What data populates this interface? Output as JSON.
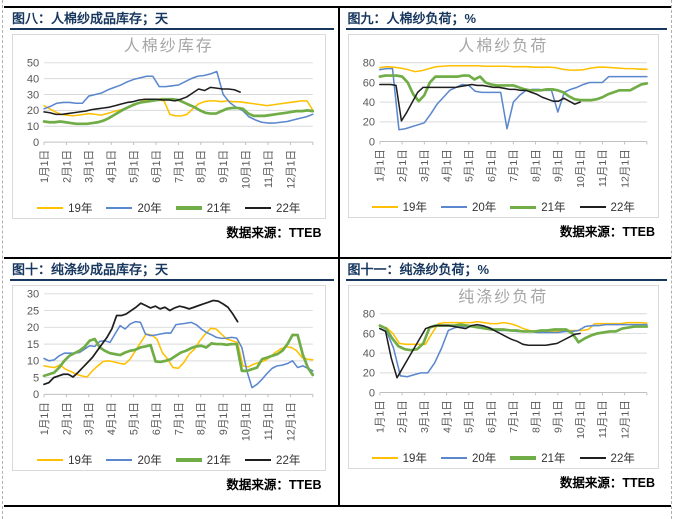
{
  "source_label": "数据来源：TTEB",
  "colors": {
    "y19": "#FFC000",
    "y20": "#5B87CE",
    "y21": "#70AD47",
    "y22": "#1F1F1F"
  },
  "x_labels": [
    "1月1日",
    "2月1日",
    "3月1日",
    "4月1日",
    "5月1日",
    "6月1日",
    "7月1日",
    "8月1日",
    "9月1日",
    "10月1日",
    "11月1日",
    "12月1日"
  ],
  "legend_labels": [
    "19年",
    "20年",
    "21年",
    "22年"
  ],
  "chart_data": [
    {
      "type": "line",
      "header": "图八：人棉纱成品库存；天",
      "title": "人棉纱库存",
      "ylabel": "天",
      "ylim": [
        0,
        50
      ],
      "yticks": [
        0,
        10,
        20,
        30,
        40,
        50
      ],
      "grid": true,
      "legend_position": "bottom",
      "series": [
        {
          "name": "19年",
          "color": "y19",
          "width": 1.6,
          "span": 1,
          "values": [
            23,
            21,
            19,
            17.5,
            17,
            16.5,
            17,
            17.5,
            18,
            17.5,
            17,
            18,
            19,
            20,
            21,
            22.5,
            23.5,
            25.5,
            26.5,
            27,
            26.5,
            26,
            17.5,
            16.5,
            16.5,
            17.5,
            21,
            24,
            25.5,
            26,
            26,
            25.5,
            26,
            25.5,
            25.5,
            25,
            24.5,
            24,
            23.5,
            23,
            23.5,
            24,
            24.5,
            25,
            25.5,
            26,
            26,
            20
          ]
        },
        {
          "name": "20年",
          "color": "y20",
          "width": 1.6,
          "span": 1,
          "values": [
            21,
            22.5,
            24.5,
            25,
            25,
            24.5,
            24.5,
            29,
            30,
            31,
            33,
            34.5,
            36,
            38,
            39.5,
            40.5,
            41.5,
            41.5,
            35,
            35,
            35.5,
            36,
            38,
            40,
            41.5,
            42,
            43,
            44.5,
            30,
            25,
            22,
            20,
            16,
            14,
            12.5,
            12,
            12,
            12.5,
            13,
            14,
            15,
            16,
            17.5
          ]
        },
        {
          "name": "21年",
          "color": "y21",
          "width": 2.8,
          "span": 1,
          "values": [
            13,
            12.5,
            12.5,
            13,
            12.5,
            12,
            11.5,
            11.5,
            11.5,
            12,
            12.5,
            13.5,
            15,
            17,
            19,
            21,
            22.5,
            24,
            25,
            25.5,
            26,
            26.5,
            27,
            27,
            27,
            26.5,
            25,
            23.5,
            22,
            20,
            18.5,
            18,
            18,
            19.5,
            21,
            21.5,
            21.5,
            21,
            18,
            16.5,
            16.5,
            16.5,
            17,
            17.5,
            18,
            18.5,
            19,
            19.5,
            19.5,
            20,
            19.5
          ]
        },
        {
          "name": "22年",
          "color": "y22",
          "width": 1.6,
          "span": 0.73,
          "values": [
            19,
            18.5,
            17.5,
            17.5,
            18,
            18.5,
            19,
            19.5,
            20.5,
            21,
            21.5,
            22,
            23,
            24,
            25,
            25.5,
            26.5,
            27,
            27,
            27,
            26.5,
            26.5,
            26,
            27,
            28.5,
            31,
            33.5,
            32.5,
            34.5,
            34,
            33.5,
            33.5,
            33,
            31.5
          ]
        }
      ]
    },
    {
      "type": "line",
      "header": "图九：人棉纱负荷；%",
      "title": "人棉纱负荷",
      "ylabel": "%",
      "ylim": [
        0,
        80
      ],
      "yticks": [
        0,
        20,
        40,
        60,
        80
      ],
      "grid": true,
      "legend_position": "bottom",
      "series": [
        {
          "name": "19年",
          "color": "y19",
          "width": 1.6,
          "span": 1,
          "values": [
            75,
            76,
            75.5,
            74.5,
            73,
            71,
            72,
            74,
            76,
            76.5,
            77,
            77,
            77,
            77,
            77,
            76.5,
            76.5,
            76.5,
            76.5,
            76,
            76,
            76,
            75.5,
            75.5,
            75.5,
            75,
            73.5,
            72.5,
            72.5,
            73,
            74.5,
            75.5,
            75.5,
            75,
            74.5,
            74,
            74,
            73.5,
            73.5
          ]
        },
        {
          "name": "20年",
          "color": "y20",
          "width": 1.6,
          "span": 1,
          "values": [
            73,
            74,
            74,
            12,
            13,
            15,
            17,
            19,
            28,
            38,
            45,
            52,
            55,
            58,
            57,
            51,
            50,
            50,
            50,
            50,
            13,
            40,
            47,
            52,
            53,
            53,
            52,
            52,
            30,
            50,
            53,
            55,
            58,
            60,
            60,
            60,
            66,
            66,
            66,
            66,
            66,
            66,
            66
          ]
        },
        {
          "name": "21年",
          "color": "y21",
          "width": 2.8,
          "span": 1,
          "values": [
            66,
            67,
            67,
            67,
            66,
            60,
            48,
            41,
            47,
            60,
            66,
            66,
            66,
            66,
            66,
            67,
            67,
            63,
            66,
            60,
            58,
            57,
            57,
            57,
            57,
            55,
            53,
            52,
            52,
            52,
            53,
            53,
            52,
            50,
            46,
            43,
            42,
            42,
            42,
            43,
            45,
            48,
            50,
            52,
            52,
            52,
            55,
            58,
            59
          ]
        },
        {
          "name": "22年",
          "color": "y22",
          "width": 1.6,
          "span": 0.75,
          "values": [
            58,
            58,
            58,
            57,
            21,
            30,
            40,
            50,
            55,
            55,
            55,
            55,
            55,
            55,
            55,
            56,
            57,
            58,
            57,
            57,
            56,
            55,
            55,
            54,
            53,
            53,
            52,
            52,
            50,
            48,
            45,
            43,
            41,
            41,
            44,
            41,
            38,
            40
          ]
        }
      ]
    },
    {
      "type": "line",
      "header": "图十：纯涤纱成品库存；天",
      "title": "",
      "ylabel": "天",
      "ylim": [
        0,
        30
      ],
      "yticks": [
        0,
        5,
        10,
        15,
        20,
        25,
        30
      ],
      "grid": true,
      "legend_position": "bottom",
      "series": [
        {
          "name": "19年",
          "color": "y19",
          "width": 1.6,
          "span": 1,
          "values": [
            8.5,
            8.2,
            8,
            8.8,
            7.5,
            6.8,
            6,
            5.5,
            5.2,
            7,
            8.5,
            9.8,
            10,
            9.7,
            9.3,
            9,
            10.5,
            13,
            15.5,
            18,
            17.7,
            16.5,
            12.5,
            10.5,
            8,
            7.8,
            9.5,
            12,
            13.5,
            16,
            18,
            19.7,
            19.5,
            18,
            16.5,
            16,
            15.5,
            8.5,
            8.2,
            9,
            9.5,
            10,
            11,
            12.5,
            13.5,
            14.2,
            14,
            13,
            11,
            10.5,
            10.3
          ]
        },
        {
          "name": "20年",
          "color": "y20",
          "width": 1.6,
          "span": 1,
          "values": [
            10.7,
            10,
            10.3,
            11.5,
            12.3,
            12.3,
            12.3,
            12.5,
            13.5,
            14.5,
            14.3,
            15.8,
            16,
            15.5,
            18,
            20.5,
            19.5,
            21,
            21.7,
            21.5,
            18,
            17.5,
            17.7,
            18,
            18.3,
            18.3,
            20.8,
            21,
            21.2,
            21.5,
            20.8,
            19.5,
            18.5,
            17.8,
            17,
            16.7,
            16.8,
            17,
            16.8,
            14,
            7,
            2,
            3,
            4.5,
            6.3,
            7.8,
            8.5,
            8.7,
            9.2,
            10,
            8,
            8.5,
            7.8,
            7
          ]
        },
        {
          "name": "21年",
          "color": "y21",
          "width": 2.8,
          "span": 1,
          "values": [
            5.5,
            6,
            6.5,
            8,
            10,
            11.5,
            12.3,
            13,
            14.2,
            16,
            16.5,
            14,
            13,
            12.3,
            12,
            11.7,
            12.5,
            13,
            13.3,
            14,
            14.3,
            14.7,
            9.8,
            9.7,
            10,
            10.5,
            11.5,
            12.5,
            13,
            13.8,
            14.3,
            14.5,
            14,
            15.2,
            15,
            15,
            14.8,
            15,
            15,
            7,
            7,
            7.5,
            8,
            10.5,
            11,
            11.5,
            12,
            13,
            15,
            17.7,
            17.7,
            12,
            8,
            5.8
          ]
        },
        {
          "name": "22年",
          "color": "y22",
          "width": 1.8,
          "span": 0.72,
          "values": [
            3,
            3.5,
            5,
            5.5,
            6,
            6,
            5.2,
            6.5,
            8,
            9.5,
            11,
            13,
            15,
            17,
            19.5,
            23.5,
            23.5,
            24,
            25,
            26,
            27.2,
            26.5,
            25.8,
            26.3,
            25.5,
            26,
            25,
            25.8,
            26.3,
            26,
            25.5,
            26,
            26.5,
            27,
            27.5,
            28,
            27.8,
            27,
            26,
            24,
            21.7
          ]
        }
      ]
    },
    {
      "type": "line",
      "header": "图十一：纯涤纱负荷；%",
      "title": "纯涤纱负荷",
      "ylabel": "%",
      "ylim": [
        0,
        80
      ],
      "yticks": [
        0,
        20,
        40,
        60,
        80
      ],
      "grid": true,
      "legend_position": "bottom",
      "series": [
        {
          "name": "19年",
          "color": "y19",
          "width": 1.6,
          "span": 1,
          "values": [
            67,
            66,
            60,
            50,
            49,
            49,
            49,
            49,
            60,
            70,
            71,
            71,
            71,
            71,
            71,
            72,
            71,
            70,
            70,
            71,
            70,
            68,
            65,
            63,
            62,
            62,
            62,
            62,
            62,
            63,
            63,
            63,
            64,
            70,
            70,
            70,
            70,
            70,
            71,
            71,
            71,
            70.5
          ]
        },
        {
          "name": "20年",
          "color": "y20",
          "width": 1.6,
          "span": 1,
          "values": [
            65,
            62,
            45,
            17,
            16,
            18,
            20,
            20,
            30,
            45,
            63,
            66,
            67,
            67,
            67,
            67,
            66,
            63,
            63,
            63,
            62,
            62,
            62,
            61,
            61,
            61,
            61,
            62,
            62,
            63,
            67,
            68,
            68,
            69,
            69,
            69,
            69,
            69,
            69,
            69
          ]
        },
        {
          "name": "21年",
          "color": "y21",
          "width": 2.8,
          "span": 1,
          "values": [
            68,
            65,
            55,
            47,
            44,
            43,
            44,
            50,
            66,
            68,
            68,
            68,
            68,
            69,
            68,
            67,
            66,
            65,
            64,
            64,
            64,
            63,
            63,
            62,
            62,
            62,
            63,
            63,
            64,
            64,
            64,
            60,
            51,
            55,
            58,
            60,
            61,
            62,
            62,
            65,
            66,
            67,
            67,
            67
          ]
        },
        {
          "name": "22年",
          "color": "y22",
          "width": 1.6,
          "span": 0.75,
          "values": [
            65,
            62,
            35,
            15,
            25,
            35,
            45,
            55,
            65,
            67,
            68,
            68,
            68,
            67,
            66,
            65,
            68,
            69,
            68,
            66,
            63,
            60,
            57,
            54,
            52,
            49,
            48,
            48,
            48,
            48,
            49,
            50,
            53,
            56,
            59,
            60
          ]
        }
      ]
    }
  ]
}
